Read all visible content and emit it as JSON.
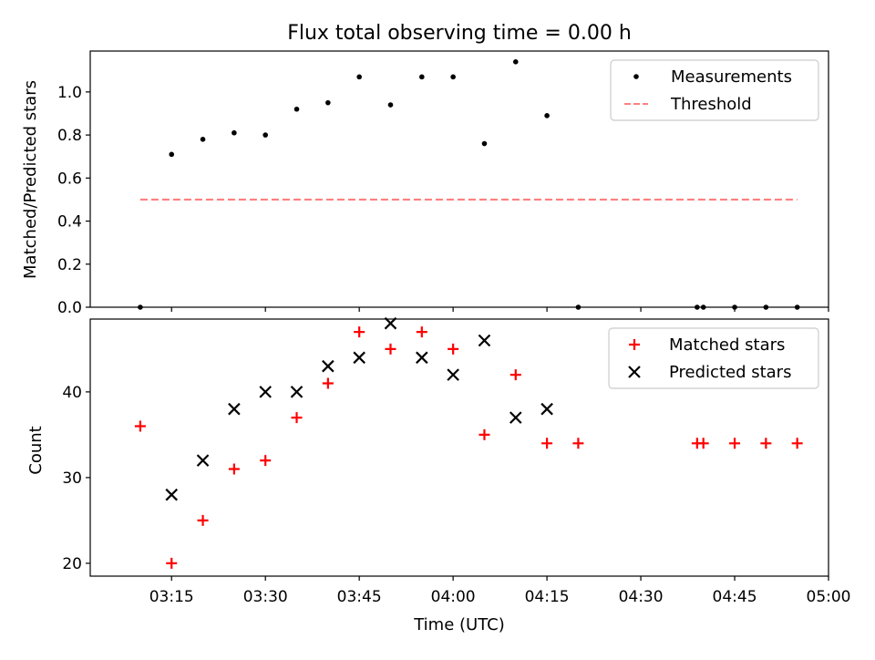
{
  "figure": {
    "title": "Flux total observing time = 0.00 h",
    "xlabel": "Time (UTC)"
  },
  "chart_data": [
    {
      "type": "scatter",
      "ylabel": "Matched/Predicted stars",
      "ylim": [
        0,
        1.19
      ],
      "xlim": [
        "03:02",
        "05:00"
      ],
      "yticks": [
        "0.0",
        "0.2",
        "0.4",
        "0.6",
        "0.8",
        "1.0"
      ],
      "legend_position": "top-right",
      "series": [
        {
          "name": "Measurements",
          "marker": "dot",
          "color": "#000000",
          "x": [
            "03:10",
            "03:15",
            "03:20",
            "03:25",
            "03:30",
            "03:35",
            "03:40",
            "03:45",
            "03:50",
            "03:55",
            "04:00",
            "04:05",
            "04:10",
            "04:15",
            "04:20",
            "04:39",
            "04:40",
            "04:45",
            "04:50",
            "04:55"
          ],
          "y": [
            0.0,
            0.71,
            0.78,
            0.81,
            0.8,
            0.92,
            0.95,
            1.07,
            0.94,
            1.07,
            1.07,
            0.76,
            1.14,
            0.89,
            0.0,
            0.0,
            0.0,
            0.0,
            0.0,
            0.0
          ]
        },
        {
          "name": "Threshold",
          "marker": "dashed-line",
          "color": "#ff7f7f",
          "x": [
            "03:10",
            "04:55"
          ],
          "y": [
            0.5,
            0.5
          ]
        }
      ]
    },
    {
      "type": "scatter",
      "ylabel": "Count",
      "ylim": [
        18.5,
        48.5
      ],
      "xlim": [
        "03:02",
        "05:00"
      ],
      "yticks": [
        "20",
        "30",
        "40"
      ],
      "xticks": [
        "03:15",
        "03:30",
        "03:45",
        "04:00",
        "04:15",
        "04:30",
        "04:45",
        "05:00"
      ],
      "legend_position": "top-right",
      "series": [
        {
          "name": "Matched stars",
          "marker": "plus",
          "color": "#ff0000",
          "x": [
            "03:10",
            "03:15",
            "03:20",
            "03:25",
            "03:30",
            "03:35",
            "03:40",
            "03:45",
            "03:50",
            "03:55",
            "04:00",
            "04:05",
            "04:10",
            "04:15",
            "04:20",
            "04:39",
            "04:40",
            "04:45",
            "04:50",
            "04:55"
          ],
          "y": [
            36,
            20,
            25,
            31,
            32,
            37,
            41,
            47,
            45,
            47,
            45,
            35,
            42,
            34,
            34,
            34,
            34,
            34,
            34,
            34
          ]
        },
        {
          "name": "Predicted stars",
          "marker": "x",
          "color": "#000000",
          "x": [
            "03:15",
            "03:20",
            "03:25",
            "03:30",
            "03:35",
            "03:40",
            "03:45",
            "03:50",
            "03:55",
            "04:00",
            "04:05",
            "04:10",
            "04:15"
          ],
          "y": [
            28,
            32,
            38,
            40,
            40,
            43,
            44,
            48,
            44,
            42,
            46,
            37,
            38
          ]
        }
      ]
    }
  ]
}
